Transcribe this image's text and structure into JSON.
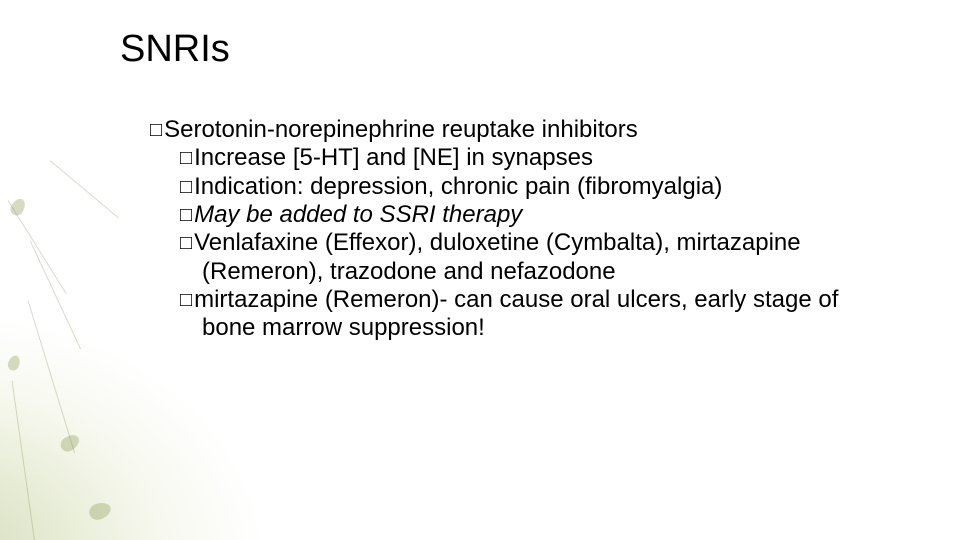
{
  "title": "SNRIs",
  "text_color": "#000000",
  "background_tint": "#8a9a3a",
  "bullets": {
    "main": "Serotonin-norepinephrine reuptake inhibitors",
    "subs": [
      {
        "text": "Increase [5-HT] and [NE] in synapses",
        "italic": false
      },
      {
        "text": "Indication:  depression, chronic pain (fibromyalgia)",
        "italic": false
      },
      {
        "text": "May be added to SSRI therapy",
        "italic": true
      },
      {
        "text": "Venlafaxine (Effexor), duloxetine (Cymbalta), mirtazapine (Remeron), trazodone and nefazodone",
        "italic": false
      },
      {
        "text": "mirtazapine (Remeron)- can cause oral ulcers, early stage of bone marrow suppression!",
        "italic": false
      }
    ]
  },
  "font": {
    "title_size": 38,
    "body_size": 24
  }
}
